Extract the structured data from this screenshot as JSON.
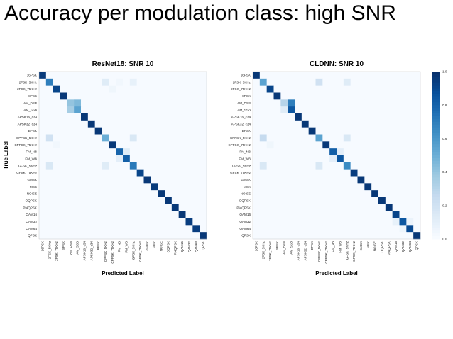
{
  "slide": {
    "title": "Accuracy per modulation class: high SNR"
  },
  "chart_data": [
    {
      "type": "heatmap",
      "title": "ResNet18: SNR 10",
      "xlabel": "Predicted Label",
      "ylabel": "True Label",
      "labels": [
        "16PSK",
        "2FSK_5KHz",
        "2FSK_75KHz",
        "8PSK",
        "AM_DSB",
        "AM_SSB",
        "APSK16_c34",
        "APSK32_c34",
        "BPSK",
        "CPFSK_5KHz",
        "CPFSK_75KHz",
        "FM_NB",
        "FM_WB",
        "GFSK_5KHz",
        "GFSK_75KHz",
        "GMSK",
        "MSK",
        "NOISE",
        "OQPSK",
        "PI4QPSK",
        "QAM16",
        "QAM32",
        "QAM64",
        "QPSK"
      ],
      "colorscale": "Blues",
      "zlim": [
        0,
        1
      ],
      "diagonal": [
        0.96,
        0.7,
        0.92,
        0.97,
        0.4,
        0.55,
        0.97,
        0.97,
        0.97,
        0.5,
        0.97,
        0.8,
        0.82,
        0.72,
        0.92,
        0.97,
        0.96,
        0.97,
        0.97,
        0.97,
        0.97,
        0.95,
        0.95,
        0.97
      ],
      "off_diagonal": [
        {
          "row": "2FSK_5KHz",
          "col": "CPFSK_5KHz",
          "value": 0.12
        },
        {
          "row": "2FSK_5KHz",
          "col": "GFSK_5KHz",
          "value": 0.08
        },
        {
          "row": "2FSK_5KHz",
          "col": "FM_NB",
          "value": 0.03
        },
        {
          "row": "AM_DSB",
          "col": "AM_SSB",
          "value": 0.45
        },
        {
          "row": "AM_SSB",
          "col": "AM_DSB",
          "value": 0.35
        },
        {
          "row": "CPFSK_5KHz",
          "col": "2FSK_5KHz",
          "value": 0.2
        },
        {
          "row": "CPFSK_5KHz",
          "col": "GFSK_5KHz",
          "value": 0.15
        },
        {
          "row": "GFSK_5KHz",
          "col": "2FSK_5KHz",
          "value": 0.15
        },
        {
          "row": "GFSK_5KHz",
          "col": "CPFSK_5KHz",
          "value": 0.12
        },
        {
          "row": "FM_NB",
          "col": "FM_WB",
          "value": 0.12
        },
        {
          "row": "FM_WB",
          "col": "FM_NB",
          "value": 0.1
        },
        {
          "row": "2FSK_75KHz",
          "col": "CPFSK_75KHz",
          "value": 0.04
        },
        {
          "row": "CPFSK_75KHz",
          "col": "2FSK_75KHz",
          "value": 0.03
        }
      ]
    },
    {
      "type": "heatmap",
      "title": "CLDNN: SNR 10",
      "xlabel": "Predicted Label",
      "ylabel": "",
      "labels": [
        "16PSK",
        "2FSK_5KHz",
        "2FSK_75KHz",
        "8PSK",
        "AM_DSB",
        "AM_SSB",
        "APSK16_c34",
        "APSK32_c34",
        "BPSK",
        "CPFSK_5KHz",
        "CPFSK_75KHz",
        "FM_NB",
        "FM_WB",
        "GFSK_5KHz",
        "GFSK_75KHz",
        "GMSK",
        "MSK",
        "NOISE",
        "OQPSK",
        "PI4QPSK",
        "QAM16",
        "QAM32",
        "QAM64",
        "QPSK"
      ],
      "colorscale": "Blues",
      "zlim": [
        0,
        1
      ],
      "diagonal": [
        0.97,
        0.55,
        0.92,
        0.97,
        0.3,
        0.85,
        0.97,
        0.97,
        0.97,
        0.55,
        0.97,
        0.82,
        0.85,
        0.65,
        0.95,
        0.97,
        0.97,
        0.97,
        0.97,
        0.97,
        0.92,
        0.85,
        0.9,
        0.97
      ],
      "off_diagonal": [
        {
          "row": "2FSK_5KHz",
          "col": "CPFSK_5KHz",
          "value": 0.2
        },
        {
          "row": "2FSK_5KHz",
          "col": "GFSK_5KHz",
          "value": 0.12
        },
        {
          "row": "AM_DSB",
          "col": "AM_SSB",
          "value": 0.7
        },
        {
          "row": "AM_SSB",
          "col": "AM_DSB",
          "value": 0.12
        },
        {
          "row": "CPFSK_5KHz",
          "col": "2FSK_5KHz",
          "value": 0.25
        },
        {
          "row": "CPFSK_5KHz",
          "col": "GFSK_5KHz",
          "value": 0.15
        },
        {
          "row": "GFSK_5KHz",
          "col": "2FSK_5KHz",
          "value": 0.15
        },
        {
          "row": "GFSK_5KHz",
          "col": "CPFSK_5KHz",
          "value": 0.15
        },
        {
          "row": "FM_NB",
          "col": "FM_WB",
          "value": 0.1
        },
        {
          "row": "FM_WB",
          "col": "FM_NB",
          "value": 0.1
        },
        {
          "row": "QAM32",
          "col": "QAM16",
          "value": 0.08
        },
        {
          "row": "QAM32",
          "col": "QAM64",
          "value": 0.06
        },
        {
          "row": "QAM64",
          "col": "QAM32",
          "value": 0.05
        },
        {
          "row": "CPFSK_75KHz",
          "col": "2FSK_75KHz",
          "value": 0.04
        }
      ]
    }
  ],
  "colorbar": {
    "ticks": [
      "1.0",
      "0.8",
      "0.6",
      "0.4",
      "0.2",
      "0.0"
    ]
  }
}
